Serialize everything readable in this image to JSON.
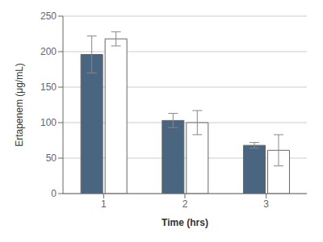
{
  "chart_data": {
    "type": "bar",
    "categories": [
      "1",
      "2",
      "3"
    ],
    "series": [
      {
        "color": "#4a6580",
        "values": [
          196,
          103,
          68
        ],
        "errors": [
          26,
          10,
          4
        ]
      },
      {
        "color": "#ffffff",
        "values": [
          218,
          100,
          61
        ],
        "errors": [
          10,
          17,
          22
        ]
      }
    ],
    "xlabel": "Time (hrs)",
    "ylabel": "Ertapenem (μg/mL)",
    "ylim": [
      0,
      250
    ],
    "yticks": [
      0,
      50,
      100,
      150,
      200,
      250
    ],
    "grid": true
  }
}
